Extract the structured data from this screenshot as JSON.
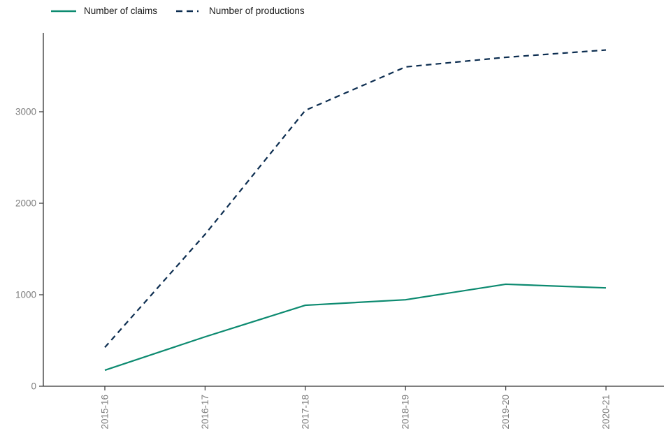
{
  "chart_data": {
    "type": "line",
    "categories": [
      "2015-16",
      "2016-17",
      "2017-18",
      "2018-19",
      "2019-20",
      "2020-21"
    ],
    "series": [
      {
        "name": "Number of claims",
        "style": "solid",
        "color": "#0c8a70",
        "values": [
          175,
          540,
          885,
          945,
          1115,
          1075
        ]
      },
      {
        "name": "Number of productions",
        "style": "dashed",
        "color": "#0c2d50",
        "values": [
          425,
          1660,
          3015,
          3490,
          3595,
          3675
        ]
      }
    ],
    "title": "",
    "xlabel": "",
    "ylabel": "",
    "ylim": [
      0,
      3860
    ],
    "yticks": [
      0,
      1000,
      2000,
      3000
    ],
    "x_tick_rotation": 90,
    "grid": false,
    "legend_position": "top-left"
  },
  "axes": {
    "axis_color": "#333333",
    "tick_label_color": "#7e7e7e",
    "tick_font_size": 13.5
  }
}
